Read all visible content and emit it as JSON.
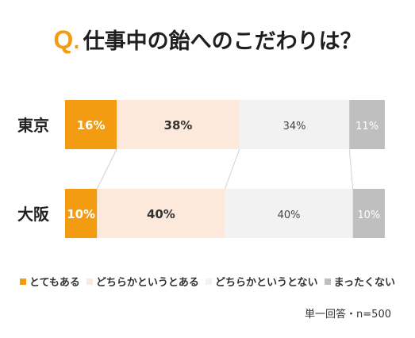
{
  "title": {
    "q": "Q",
    "dot": ".",
    "text": "仕事中の飴へのこだわりは？"
  },
  "chart_data": {
    "type": "bar",
    "orientation": "horizontal",
    "stacked": true,
    "percent": true,
    "categories": [
      "東京",
      "大阪"
    ],
    "series": [
      {
        "name": "とてもある",
        "values": [
          16,
          10
        ],
        "labels": [
          "16%",
          "10%"
        ],
        "color": "#f39c12",
        "label_color": "#ffffff"
      },
      {
        "name": "どちらかというとある",
        "values": [
          38,
          40
        ],
        "labels": [
          "38%",
          "40%"
        ],
        "color": "#fde9dc",
        "label_color": "#333333"
      },
      {
        "name": "どちらかというとない",
        "values": [
          34,
          40
        ],
        "labels": [
          "34%",
          "40%"
        ],
        "color": "#f2f2f2",
        "label_color": "#444444"
      },
      {
        "name": "まったくない",
        "values": [
          11,
          10
        ],
        "labels": [
          "11%",
          "10%"
        ],
        "color": "#bfbfbf",
        "label_color": "#ffffff"
      }
    ],
    "legend_position": "bottom",
    "grid": false
  },
  "note": "単一回答・n=500"
}
